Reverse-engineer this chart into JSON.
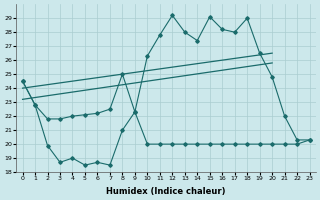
{
  "xlabel": "Humidex (Indice chaleur)",
  "background_color": "#cce8eb",
  "grid_color": "#aacdd0",
  "line_color": "#1a6b6b",
  "xlim": [
    -0.5,
    23.5
  ],
  "ylim": [
    18,
    30
  ],
  "x_ticks": [
    0,
    1,
    2,
    3,
    4,
    5,
    6,
    7,
    8,
    9,
    10,
    11,
    12,
    13,
    14,
    15,
    16,
    17,
    18,
    19,
    20,
    21,
    22,
    23
  ],
  "y_ticks": [
    18,
    19,
    20,
    21,
    22,
    23,
    24,
    25,
    26,
    27,
    28,
    29
  ],
  "zigzag_x": [
    0,
    1,
    2,
    3,
    4,
    5,
    6,
    7,
    8,
    9,
    10,
    11,
    12,
    13,
    14,
    15,
    16,
    17,
    18,
    19,
    20,
    21,
    22,
    23
  ],
  "zigzag_y": [
    24.5,
    22.8,
    21.8,
    21.8,
    22.0,
    22.1,
    22.2,
    22.5,
    25.0,
    22.3,
    26.3,
    27.8,
    29.2,
    28.0,
    27.4,
    29.1,
    28.2,
    28.0,
    29.0,
    26.5,
    24.8,
    22.0,
    20.3,
    20.3
  ],
  "low_x": [
    0,
    1,
    2,
    3,
    4,
    5,
    6,
    7,
    8,
    9,
    10,
    11,
    12,
    13,
    14,
    15,
    16,
    17,
    18,
    19,
    20,
    21,
    22,
    23
  ],
  "low_y": [
    24.5,
    22.8,
    19.9,
    18.7,
    19.0,
    18.5,
    18.7,
    18.5,
    21.0,
    22.3,
    20.0,
    20.0,
    20.0,
    20.0,
    20.0,
    20.0,
    20.0,
    20.0,
    20.0,
    20.0,
    20.0,
    20.0,
    20.0,
    20.3
  ],
  "trend1_x": [
    0,
    20
  ],
  "trend1_y": [
    24.0,
    26.5
  ],
  "trend2_x": [
    0,
    20
  ],
  "trend2_y": [
    23.2,
    25.8
  ]
}
